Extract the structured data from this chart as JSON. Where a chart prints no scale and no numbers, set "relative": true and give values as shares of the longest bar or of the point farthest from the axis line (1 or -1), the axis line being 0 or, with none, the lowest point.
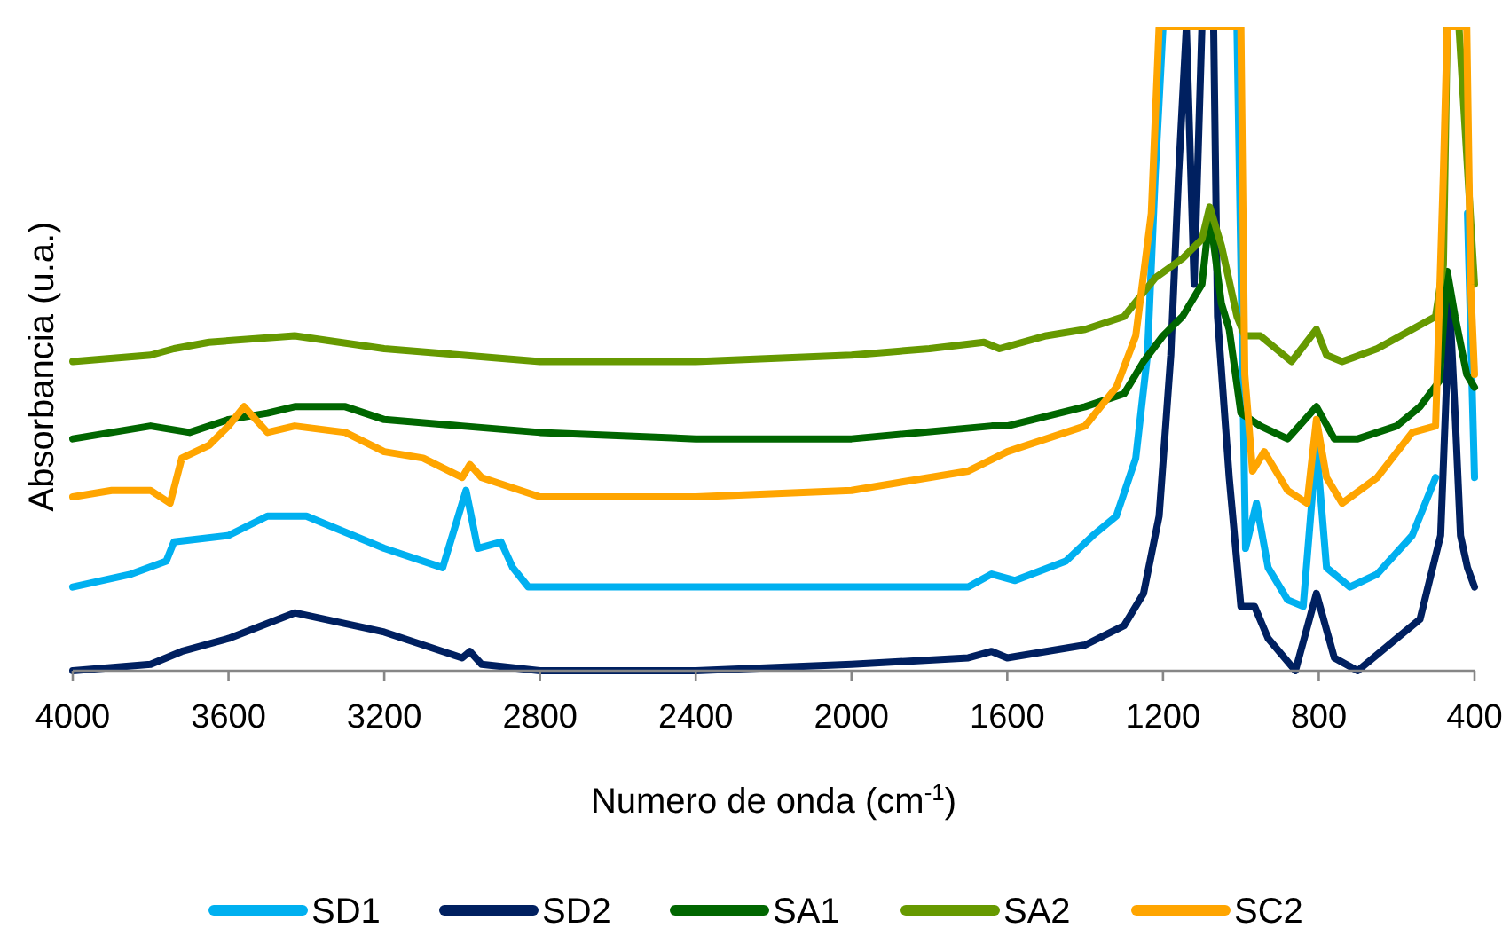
{
  "chart_data": {
    "type": "line",
    "xlabel": "Numero de onda (cm$^{-1}$)",
    "ylabel": "Absorbancia (u.a.)",
    "relative": true,
    "xlim": [
      4000,
      400
    ],
    "xticks": [
      4000,
      3600,
      3200,
      2800,
      2400,
      2000,
      1600,
      1200,
      800,
      400
    ],
    "legend": "bottom",
    "series": [
      {
        "name": "SD1",
        "color": "#00b0f0",
        "x": [
          4000,
          3850,
          3760,
          3740,
          3600,
          3500,
          3400,
          3200,
          3050,
          2990,
          2960,
          2900,
          2870,
          2830,
          2600,
          2000,
          1850,
          1700,
          1640,
          1580,
          1450,
          1380,
          1320,
          1270,
          1240,
          1220,
          1200,
          1010,
          988,
          960,
          930,
          880,
          840,
          806,
          780,
          720,
          650,
          560,
          500,
          480,
          470,
          430,
          418,
          400
        ],
        "values": [
          0.13,
          0.15,
          0.17,
          0.2,
          0.21,
          0.24,
          0.24,
          0.19,
          0.16,
          0.28,
          0.19,
          0.2,
          0.16,
          0.13,
          0.13,
          0.13,
          0.13,
          0.13,
          0.15,
          0.14,
          0.17,
          0.21,
          0.24,
          0.33,
          0.49,
          0.77,
          1,
          1,
          0.19,
          0.26,
          0.16,
          0.11,
          0.1,
          0.35,
          0.16,
          0.13,
          0.15,
          0.21,
          0.3,
          null,
          null,
          null,
          0.71,
          0.3
        ]
      },
      {
        "name": "SD2",
        "color": "#002060",
        "x": [
          4000,
          3800,
          3720,
          3600,
          3430,
          3200,
          3000,
          2980,
          2950,
          2800,
          2400,
          2000,
          1700,
          1640,
          1600,
          1400,
          1300,
          1250,
          1210,
          1180,
          1160,
          1140,
          1120,
          1100,
          1070,
          1060,
          1030,
          1000,
          965,
          930,
          860,
          806,
          760,
          700,
          600,
          540,
          487,
          464,
          450,
          436,
          418,
          400
        ],
        "values": [
          0,
          0.01,
          0.03,
          0.05,
          0.09,
          0.06,
          0.02,
          0.03,
          0.01,
          0,
          0,
          0.01,
          0.02,
          0.03,
          0.02,
          0.04,
          0.07,
          0.12,
          0.24,
          0.49,
          0.77,
          1,
          0.6,
          1,
          1,
          0.55,
          0.3,
          0.1,
          0.1,
          0.05,
          0,
          0.12,
          0.02,
          0,
          0.05,
          0.08,
          0.21,
          0.57,
          0.4,
          0.21,
          0.16,
          0.13
        ]
      },
      {
        "name": "SA1",
        "color": "#006600",
        "x": [
          4000,
          3900,
          3800,
          3700,
          3600,
          3500,
          3430,
          3300,
          3200,
          3000,
          2800,
          2400,
          2000,
          1640,
          1600,
          1400,
          1300,
          1250,
          1200,
          1150,
          1100,
          1080,
          1050,
          1030,
          1000,
          950,
          880,
          806,
          760,
          700,
          600,
          540,
          490,
          470,
          450,
          420,
          400
        ],
        "values": [
          0.36,
          0.37,
          0.38,
          0.37,
          0.39,
          0.4,
          0.41,
          0.41,
          0.39,
          0.38,
          0.37,
          0.36,
          0.36,
          0.38,
          0.38,
          0.41,
          0.43,
          0.48,
          0.52,
          0.55,
          0.6,
          0.71,
          0.57,
          0.53,
          0.4,
          0.38,
          0.36,
          0.41,
          0.36,
          0.36,
          0.38,
          0.41,
          0.45,
          0.62,
          0.55,
          0.46,
          0.44
        ]
      },
      {
        "name": "SA2",
        "color": "#669900",
        "x": [
          4000,
          3800,
          3740,
          3650,
          3430,
          3200,
          3000,
          2800,
          2400,
          2000,
          1800,
          1660,
          1620,
          1500,
          1400,
          1300,
          1260,
          1220,
          1150,
          1100,
          1080,
          1050,
          1010,
          990,
          950,
          870,
          806,
          780,
          740,
          650,
          560,
          500,
          480,
          470,
          440,
          400
        ],
        "values": [
          0.48,
          0.49,
          0.5,
          0.51,
          0.52,
          0.5,
          0.49,
          0.48,
          0.48,
          0.49,
          0.5,
          0.51,
          0.5,
          0.52,
          0.53,
          0.55,
          0.58,
          0.61,
          0.64,
          0.67,
          0.72,
          0.66,
          0.55,
          0.52,
          0.52,
          0.48,
          0.53,
          0.49,
          0.48,
          0.5,
          0.53,
          0.55,
          0.63,
          1,
          1,
          0.6
        ]
      },
      {
        "name": "SC2",
        "color": "#ffa500",
        "x": [
          4000,
          3900,
          3800,
          3750,
          3720,
          3650,
          3600,
          3560,
          3500,
          3430,
          3300,
          3200,
          3100,
          3000,
          2980,
          2950,
          2800,
          2400,
          2000,
          1800,
          1700,
          1600,
          1400,
          1320,
          1270,
          1230,
          1210,
          1000,
          990,
          970,
          940,
          880,
          830,
          806,
          780,
          740,
          650,
          560,
          500,
          480,
          470,
          420,
          410,
          400
        ],
        "values": [
          0.27,
          0.28,
          0.28,
          0.26,
          0.33,
          0.35,
          0.38,
          0.41,
          0.37,
          0.38,
          0.37,
          0.34,
          0.33,
          0.3,
          0.32,
          0.3,
          0.27,
          0.27,
          0.28,
          0.3,
          0.31,
          0.34,
          0.38,
          0.44,
          0.52,
          0.71,
          1,
          1,
          0.46,
          0.31,
          0.34,
          0.28,
          0.26,
          0.39,
          0.3,
          0.26,
          0.3,
          0.37,
          0.38,
          0.77,
          1,
          1,
          0.6,
          0.46
        ]
      }
    ]
  }
}
